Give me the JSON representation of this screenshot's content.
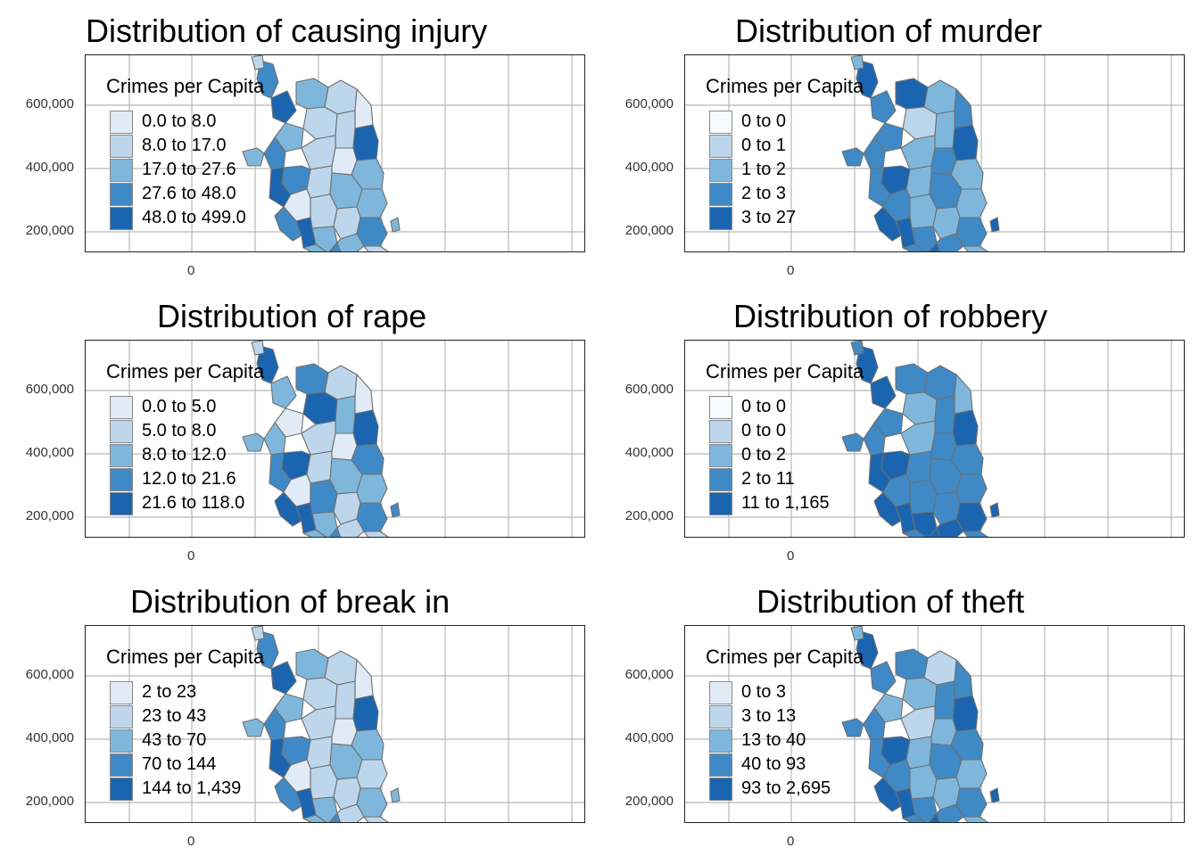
{
  "legend_title": "Crimes per Capita",
  "y_ticks": [
    "600,000",
    "400,000",
    "200,000"
  ],
  "x_ticks": [
    "0"
  ],
  "palette": [
    "#e1ebf5",
    "#bdd6ec",
    "#7fb7dc",
    "#3f8ac6",
    "#1b65b0"
  ],
  "palette_alt": [
    "#f6f9fe",
    "#bdd6ec",
    "#7fb7dc",
    "#3f8ac6",
    "#1b65b0"
  ],
  "panels": [
    {
      "title": "Distribution of causing injury",
      "legend": [
        "0.0 to 8.0",
        "8.0 to 17.0",
        "17.0 to 27.6",
        "27.6 to 48.0",
        "48.0 to 499.0"
      ]
    },
    {
      "title": "Distribution of murder",
      "legend": [
        "0 to 0",
        "0 to 1",
        "1 to 2",
        "2 to 3",
        "3 to 27"
      ]
    },
    {
      "title": "Distribution of rape",
      "legend": [
        "0.0 to 5.0",
        "5.0 to 8.0",
        "8.0 to 12.0",
        "12.0 to 21.6",
        "21.6 to 118.0"
      ]
    },
    {
      "title": "Distribution of robbery",
      "legend": [
        "0 to 0",
        "0 to 0",
        "0 to 2",
        "2 to 11",
        "11 to 1,165"
      ]
    },
    {
      "title": "Distribution of break in",
      "legend": [
        "2 to 23",
        "23 to 43",
        "43 to 70",
        "70 to 144",
        "144 to 1,439"
      ]
    },
    {
      "title": "Distribution of theft",
      "legend": [
        "0 to 3",
        "3 to 13",
        "13 to 40",
        "40 to 93",
        "93 to 2,695"
      ]
    }
  ]
}
